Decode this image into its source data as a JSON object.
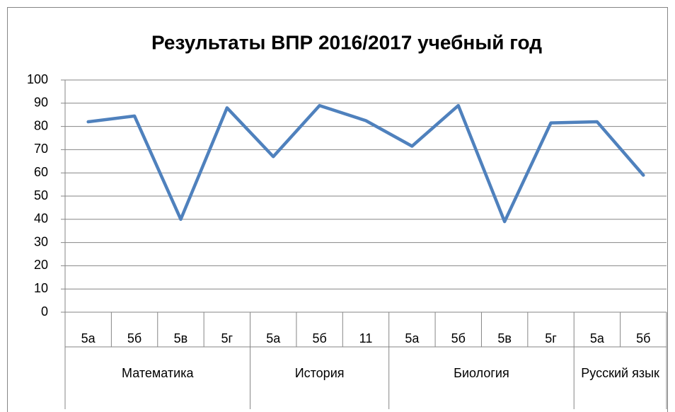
{
  "chart_data": {
    "type": "line",
    "title": "Результаты ВПР 2016/2017 учебный год",
    "groups": [
      {
        "name": "Математика",
        "categories": [
          "5а",
          "5б",
          "5в",
          "5г"
        ]
      },
      {
        "name": "История",
        "categories": [
          "5а",
          "5б",
          "11"
        ]
      },
      {
        "name": "Биология",
        "categories": [
          "5а",
          "5б",
          "5в",
          "5г"
        ]
      },
      {
        "name": "Русский язык",
        "categories": [
          "5а",
          "5б"
        ]
      }
    ],
    "values": [
      82,
      84.5,
      40,
      88,
      67,
      89,
      82.5,
      71.5,
      89,
      39,
      81.5,
      82,
      59
    ],
    "color": "#4f81bd",
    "ylim": [
      0,
      100
    ],
    "yticks": [
      0,
      10,
      20,
      30,
      40,
      50,
      60,
      70,
      80,
      90,
      100
    ],
    "grid": true
  }
}
